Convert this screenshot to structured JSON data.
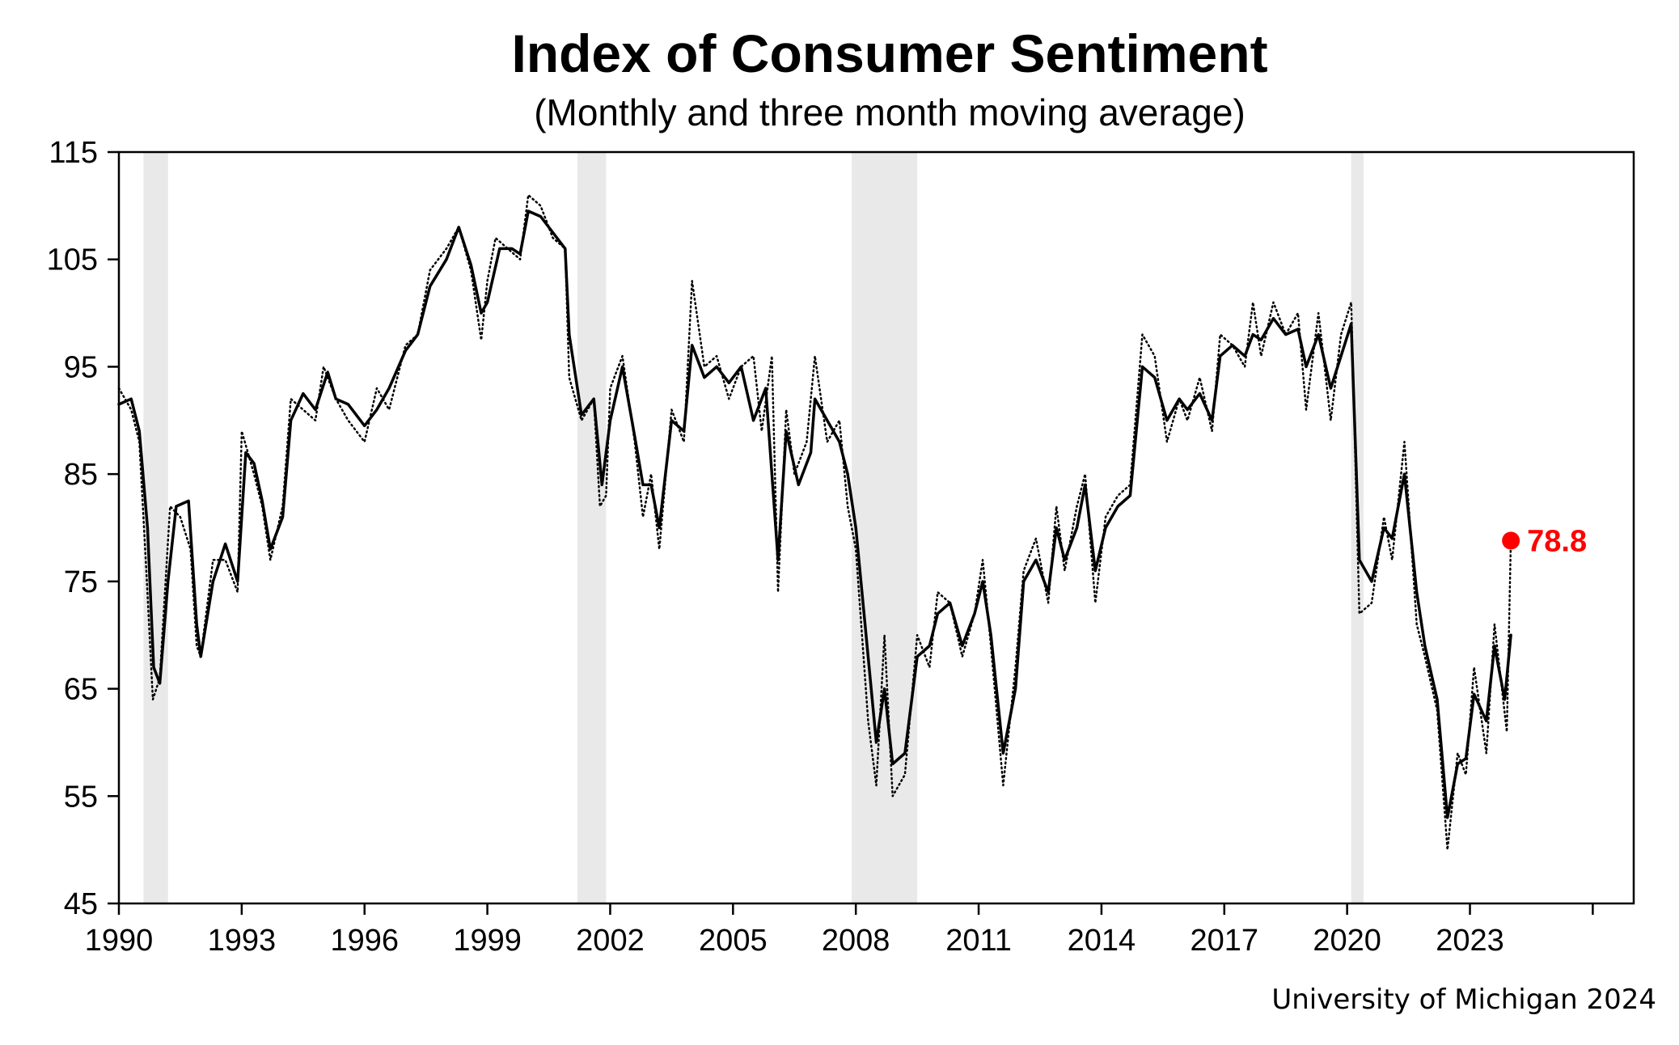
{
  "chart_data": {
    "type": "line",
    "title": "Index of Consumer Sentiment",
    "subtitle": "(Monthly and three month moving average)",
    "ylim": [
      45,
      115
    ],
    "yticks": [
      45,
      55,
      65,
      75,
      85,
      95,
      105,
      115
    ],
    "xlim": [
      1990,
      2027
    ],
    "xticks": [
      1990,
      1993,
      1996,
      1999,
      2002,
      2005,
      2008,
      2011,
      2014,
      2017,
      2020,
      2023
    ],
    "grid": false,
    "recessions": [
      [
        1990.6,
        1991.2
      ],
      [
        2001.2,
        2001.9
      ],
      [
        2007.9,
        2009.5
      ],
      [
        2020.1,
        2020.4
      ]
    ],
    "series": [
      {
        "style": "dotted",
        "points": [
          [
            1990.0,
            93.0
          ],
          [
            1990.3,
            91.0
          ],
          [
            1990.5,
            88.0
          ],
          [
            1990.67,
            76.0
          ],
          [
            1990.83,
            64.0
          ],
          [
            1991.0,
            66.0
          ],
          [
            1991.25,
            82.0
          ],
          [
            1991.5,
            81.0
          ],
          [
            1991.75,
            78.0
          ],
          [
            1991.9,
            69.0
          ],
          [
            1992.0,
            68.0
          ],
          [
            1992.3,
            77.0
          ],
          [
            1992.6,
            77.0
          ],
          [
            1992.9,
            74.0
          ],
          [
            1993.0,
            89.0
          ],
          [
            1993.3,
            85.0
          ],
          [
            1993.5,
            82.0
          ],
          [
            1993.7,
            77.0
          ],
          [
            1994.0,
            82.0
          ],
          [
            1994.2,
            92.0
          ],
          [
            1994.5,
            91.0
          ],
          [
            1994.8,
            90.0
          ],
          [
            1995.0,
            95.0
          ],
          [
            1995.3,
            92.0
          ],
          [
            1995.6,
            90.0
          ],
          [
            1996.0,
            88.0
          ],
          [
            1996.3,
            93.0
          ],
          [
            1996.6,
            91.0
          ],
          [
            1997.0,
            97.0
          ],
          [
            1997.3,
            98.0
          ],
          [
            1997.6,
            104.0
          ],
          [
            1998.0,
            106.0
          ],
          [
            1998.3,
            108.0
          ],
          [
            1998.6,
            104.0
          ],
          [
            1998.85,
            97.5
          ],
          [
            1999.0,
            103.0
          ],
          [
            1999.2,
            107.0
          ],
          [
            1999.5,
            106.0
          ],
          [
            1999.8,
            105.0
          ],
          [
            2000.0,
            111.0
          ],
          [
            2000.3,
            110.0
          ],
          [
            2000.6,
            107.0
          ],
          [
            2000.9,
            106.0
          ],
          [
            2001.0,
            94.0
          ],
          [
            2001.3,
            90.0
          ],
          [
            2001.6,
            92.0
          ],
          [
            2001.75,
            82.0
          ],
          [
            2001.9,
            83.0
          ],
          [
            2002.0,
            93.0
          ],
          [
            2002.3,
            96.0
          ],
          [
            2002.6,
            88.0
          ],
          [
            2002.8,
            81.0
          ],
          [
            2003.0,
            85.0
          ],
          [
            2003.2,
            78.0
          ],
          [
            2003.5,
            91.0
          ],
          [
            2003.8,
            88.0
          ],
          [
            2004.0,
            103.0
          ],
          [
            2004.3,
            95.0
          ],
          [
            2004.6,
            96.0
          ],
          [
            2004.9,
            92.0
          ],
          [
            2005.2,
            95.0
          ],
          [
            2005.5,
            96.0
          ],
          [
            2005.7,
            89.0
          ],
          [
            2005.95,
            96.0
          ],
          [
            2006.1,
            74.0
          ],
          [
            2006.3,
            91.0
          ],
          [
            2006.5,
            85.0
          ],
          [
            2006.8,
            88.0
          ],
          [
            2007.0,
            96.0
          ],
          [
            2007.3,
            88.0
          ],
          [
            2007.6,
            90.0
          ],
          [
            2007.8,
            82.0
          ],
          [
            2008.0,
            78.0
          ],
          [
            2008.3,
            62.0
          ],
          [
            2008.5,
            56.0
          ],
          [
            2008.7,
            70.0
          ],
          [
            2008.9,
            55.0
          ],
          [
            2009.2,
            57.0
          ],
          [
            2009.5,
            70.0
          ],
          [
            2009.8,
            67.0
          ],
          [
            2010.0,
            74.0
          ],
          [
            2010.3,
            73.0
          ],
          [
            2010.6,
            68.0
          ],
          [
            2010.9,
            72.0
          ],
          [
            2011.1,
            77.0
          ],
          [
            2011.3,
            69.0
          ],
          [
            2011.6,
            56.0
          ],
          [
            2011.9,
            67.0
          ],
          [
            2012.1,
            76.0
          ],
          [
            2012.4,
            79.0
          ],
          [
            2012.7,
            73.0
          ],
          [
            2012.9,
            82.0
          ],
          [
            2013.1,
            76.0
          ],
          [
            2013.4,
            82.0
          ],
          [
            2013.6,
            85.0
          ],
          [
            2013.85,
            73.0
          ],
          [
            2014.1,
            81.0
          ],
          [
            2014.4,
            83.0
          ],
          [
            2014.7,
            84.0
          ],
          [
            2015.0,
            98.0
          ],
          [
            2015.3,
            96.0
          ],
          [
            2015.6,
            88.0
          ],
          [
            2015.9,
            92.0
          ],
          [
            2016.1,
            90.0
          ],
          [
            2016.4,
            94.0
          ],
          [
            2016.7,
            89.0
          ],
          [
            2016.9,
            98.0
          ],
          [
            2017.2,
            97.0
          ],
          [
            2017.5,
            95.0
          ],
          [
            2017.7,
            101.0
          ],
          [
            2017.9,
            96.0
          ],
          [
            2018.2,
            101.0
          ],
          [
            2018.5,
            98.0
          ],
          [
            2018.8,
            100.0
          ],
          [
            2019.0,
            91.0
          ],
          [
            2019.3,
            100.0
          ],
          [
            2019.6,
            90.0
          ],
          [
            2019.85,
            98.0
          ],
          [
            2020.1,
            101.0
          ],
          [
            2020.3,
            72.0
          ],
          [
            2020.6,
            73.0
          ],
          [
            2020.9,
            81.0
          ],
          [
            2021.1,
            77.0
          ],
          [
            2021.4,
            88.0
          ],
          [
            2021.7,
            71.0
          ],
          [
            2021.9,
            68.0
          ],
          [
            2022.2,
            63.0
          ],
          [
            2022.45,
            50.0
          ],
          [
            2022.7,
            59.0
          ],
          [
            2022.9,
            57.0
          ],
          [
            2023.1,
            67.0
          ],
          [
            2023.4,
            59.0
          ],
          [
            2023.6,
            71.0
          ],
          [
            2023.9,
            61.0
          ],
          [
            2024.0,
            78.8
          ]
        ]
      },
      {
        "style": "solid",
        "points": [
          [
            1990.0,
            91.5
          ],
          [
            1990.3,
            92.0
          ],
          [
            1990.5,
            89.0
          ],
          [
            1990.7,
            80.0
          ],
          [
            1990.85,
            67.0
          ],
          [
            1991.0,
            65.5
          ],
          [
            1991.2,
            75.0
          ],
          [
            1991.4,
            82.0
          ],
          [
            1991.7,
            82.5
          ],
          [
            1991.9,
            71.0
          ],
          [
            1992.0,
            68.0
          ],
          [
            1992.3,
            75.0
          ],
          [
            1992.6,
            78.5
          ],
          [
            1992.9,
            75.0
          ],
          [
            1993.1,
            87.0
          ],
          [
            1993.3,
            86.0
          ],
          [
            1993.5,
            82.5
          ],
          [
            1993.7,
            78.0
          ],
          [
            1994.0,
            81.0
          ],
          [
            1994.2,
            90.0
          ],
          [
            1994.5,
            92.5
          ],
          [
            1994.8,
            91.0
          ],
          [
            1995.1,
            94.5
          ],
          [
            1995.3,
            92.0
          ],
          [
            1995.6,
            91.5
          ],
          [
            1996.0,
            89.5
          ],
          [
            1996.3,
            91.0
          ],
          [
            1996.6,
            93.0
          ],
          [
            1997.0,
            96.5
          ],
          [
            1997.3,
            98.0
          ],
          [
            1997.6,
            102.5
          ],
          [
            1998.0,
            105.0
          ],
          [
            1998.3,
            108.0
          ],
          [
            1998.6,
            104.5
          ],
          [
            1998.85,
            100.0
          ],
          [
            1999.0,
            101.0
          ],
          [
            1999.3,
            106.0
          ],
          [
            1999.6,
            106.0
          ],
          [
            1999.8,
            105.5
          ],
          [
            2000.0,
            109.5
          ],
          [
            2000.3,
            109.0
          ],
          [
            2000.6,
            107.5
          ],
          [
            2000.9,
            106.0
          ],
          [
            2001.0,
            98.0
          ],
          [
            2001.3,
            90.5
          ],
          [
            2001.6,
            92.0
          ],
          [
            2001.8,
            84.0
          ],
          [
            2002.0,
            90.0
          ],
          [
            2002.3,
            95.0
          ],
          [
            2002.6,
            88.5
          ],
          [
            2002.8,
            84.0
          ],
          [
            2003.0,
            84.0
          ],
          [
            2003.2,
            80.0
          ],
          [
            2003.5,
            90.0
          ],
          [
            2003.8,
            89.0
          ],
          [
            2004.0,
            97.0
          ],
          [
            2004.3,
            94.0
          ],
          [
            2004.6,
            95.0
          ],
          [
            2004.9,
            93.5
          ],
          [
            2005.2,
            95.0
          ],
          [
            2005.5,
            90.0
          ],
          [
            2005.8,
            93.0
          ],
          [
            2006.1,
            77.0
          ],
          [
            2006.3,
            89.0
          ],
          [
            2006.6,
            84.0
          ],
          [
            2006.9,
            87.0
          ],
          [
            2007.0,
            92.0
          ],
          [
            2007.3,
            90.0
          ],
          [
            2007.6,
            88.0
          ],
          [
            2007.8,
            85.0
          ],
          [
            2008.0,
            80.0
          ],
          [
            2008.3,
            68.0
          ],
          [
            2008.5,
            60.0
          ],
          [
            2008.7,
            65.0
          ],
          [
            2008.9,
            58.0
          ],
          [
            2009.2,
            59.0
          ],
          [
            2009.5,
            68.0
          ],
          [
            2009.8,
            69.0
          ],
          [
            2010.0,
            72.0
          ],
          [
            2010.3,
            73.0
          ],
          [
            2010.6,
            69.0
          ],
          [
            2010.9,
            72.0
          ],
          [
            2011.1,
            75.0
          ],
          [
            2011.3,
            70.0
          ],
          [
            2011.6,
            59.0
          ],
          [
            2011.9,
            65.0
          ],
          [
            2012.1,
            75.0
          ],
          [
            2012.4,
            77.0
          ],
          [
            2012.7,
            74.0
          ],
          [
            2012.9,
            80.0
          ],
          [
            2013.1,
            77.0
          ],
          [
            2013.4,
            80.0
          ],
          [
            2013.6,
            84.0
          ],
          [
            2013.85,
            76.0
          ],
          [
            2014.1,
            80.0
          ],
          [
            2014.4,
            82.0
          ],
          [
            2014.7,
            83.0
          ],
          [
            2015.0,
            95.0
          ],
          [
            2015.3,
            94.0
          ],
          [
            2015.6,
            90.0
          ],
          [
            2015.9,
            92.0
          ],
          [
            2016.1,
            91.0
          ],
          [
            2016.4,
            92.5
          ],
          [
            2016.7,
            90.0
          ],
          [
            2016.9,
            96.0
          ],
          [
            2017.2,
            97.0
          ],
          [
            2017.5,
            96.0
          ],
          [
            2017.7,
            98.0
          ],
          [
            2017.9,
            97.5
          ],
          [
            2018.2,
            99.5
          ],
          [
            2018.5,
            98.0
          ],
          [
            2018.8,
            98.5
          ],
          [
            2019.0,
            95.0
          ],
          [
            2019.3,
            98.0
          ],
          [
            2019.6,
            93.0
          ],
          [
            2019.85,
            96.0
          ],
          [
            2020.1,
            99.0
          ],
          [
            2020.3,
            77.0
          ],
          [
            2020.6,
            75.0
          ],
          [
            2020.9,
            80.0
          ],
          [
            2021.1,
            79.0
          ],
          [
            2021.4,
            85.0
          ],
          [
            2021.7,
            74.0
          ],
          [
            2021.9,
            69.0
          ],
          [
            2022.2,
            64.0
          ],
          [
            2022.45,
            53.0
          ],
          [
            2022.7,
            58.0
          ],
          [
            2022.9,
            58.5
          ],
          [
            2023.1,
            64.5
          ],
          [
            2023.4,
            62.0
          ],
          [
            2023.6,
            69.0
          ],
          [
            2023.85,
            64.0
          ],
          [
            2024.0,
            70.0
          ]
        ]
      }
    ],
    "annotations": [
      {
        "x": 2024.0,
        "y": 78.8,
        "text": "78.8",
        "color": "#ff0000"
      }
    ]
  },
  "source_note": "University of Michigan 2024",
  "colors": {
    "recession_shade": "#e9e9e9",
    "line": "#000000",
    "highlight": "#ff0000"
  }
}
